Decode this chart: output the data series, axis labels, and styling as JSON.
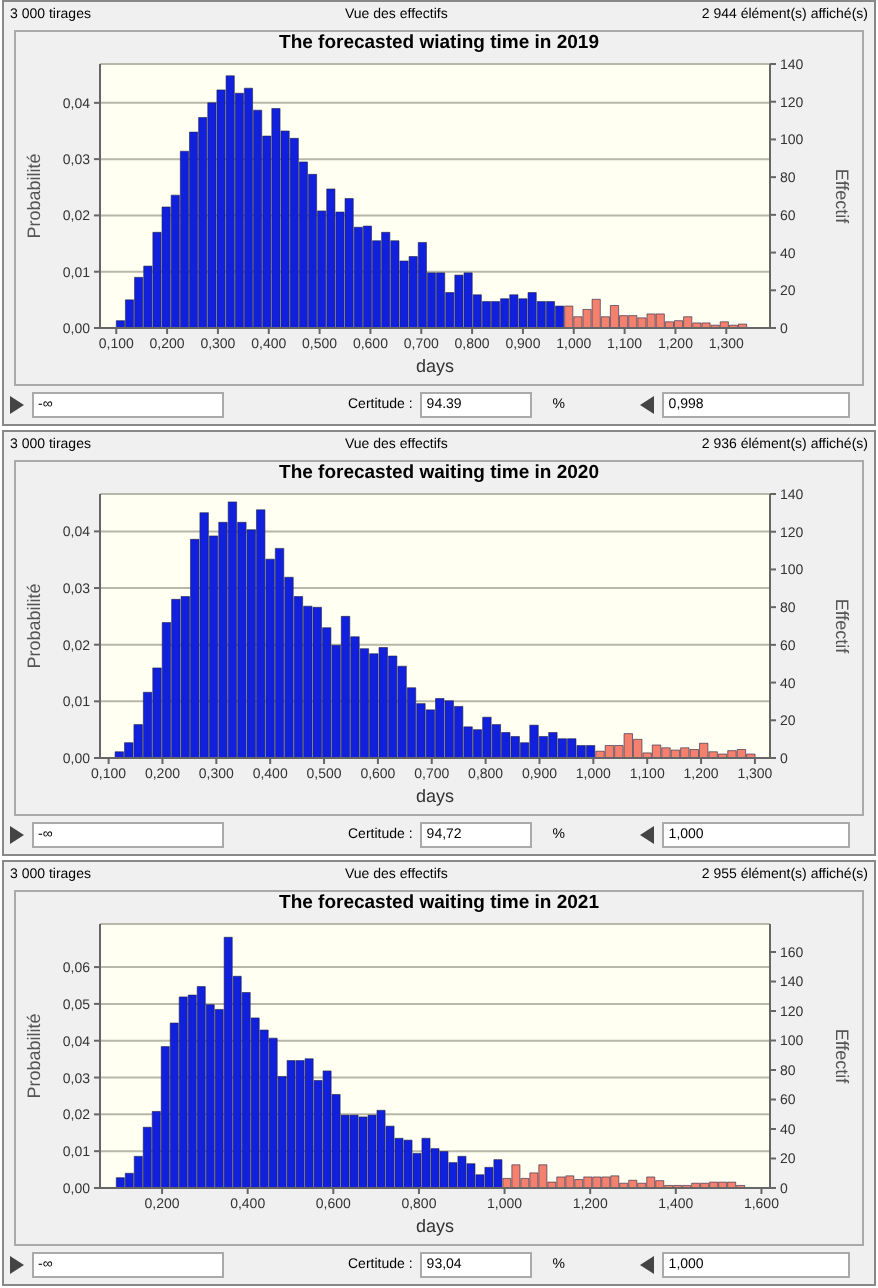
{
  "chart_data": [
    {
      "type": "histogram",
      "title": "The forecasted wiating time in 2019",
      "xlabel": "days",
      "ylabel": "Probabilité",
      "y2label": "Effectif",
      "bins": [
        0.1,
        0.118,
        0.136,
        0.154,
        0.172,
        0.19,
        0.208,
        0.226,
        0.244,
        0.262,
        0.28,
        0.298,
        0.316,
        0.334,
        0.352,
        0.37,
        0.388,
        0.406,
        0.424,
        0.442,
        0.46,
        0.478,
        0.496,
        0.514,
        0.532,
        0.55,
        0.568,
        0.586,
        0.604,
        0.622,
        0.64,
        0.658,
        0.676,
        0.694,
        0.712,
        0.73,
        0.748,
        0.766,
        0.784,
        0.802,
        0.82,
        0.838,
        0.856,
        0.874,
        0.892,
        0.91,
        0.928,
        0.946,
        0.964,
        0.982,
        1,
        1.018,
        1.036,
        1.054,
        1.072,
        1.09,
        1.108,
        1.126,
        1.144,
        1.162,
        1.18,
        1.198,
        1.216,
        1.234,
        1.252,
        1.27,
        1.288,
        1.306,
        1.324,
        1.342
      ],
      "values": [
        0.0013,
        0.005,
        0.009,
        0.011,
        0.017,
        0.0215,
        0.0236,
        0.0314,
        0.0348,
        0.0374,
        0.04,
        0.0423,
        0.0448,
        0.0417,
        0.0426,
        0.0387,
        0.0341,
        0.039,
        0.035,
        0.0337,
        0.0295,
        0.0273,
        0.0208,
        0.0247,
        0.0206,
        0.023,
        0.0179,
        0.0181,
        0.0155,
        0.017,
        0.0155,
        0.0119,
        0.0127,
        0.0152,
        0.0098,
        0.0098,
        0.0063,
        0.0094,
        0.0098,
        0.0059,
        0.0047,
        0.0047,
        0.0052,
        0.0059,
        0.0052,
        0.0063,
        0.0047,
        0.0047,
        0.0039,
        0.0039,
        0.002,
        0.0033,
        0.0051,
        0.002,
        0.004,
        0.0022,
        0.0022,
        0.0018,
        0.0025,
        0.0025,
        0.0011,
        0.0013,
        0.002,
        0.0009,
        0.0009,
        0.0005,
        0.0011,
        0.0005,
        0.0007
      ],
      "colors": [
        "#1020dc",
        "#1020dc",
        "#1020dc",
        "#1020dc",
        "#1020dc",
        "#1020dc",
        "#1020dc",
        "#1020dc",
        "#1020dc",
        "#1020dc",
        "#1020dc",
        "#1020dc",
        "#1020dc",
        "#1020dc",
        "#1020dc",
        "#1020dc",
        "#1020dc",
        "#1020dc",
        "#1020dc",
        "#1020dc",
        "#1020dc",
        "#1020dc",
        "#1020dc",
        "#1020dc",
        "#1020dc",
        "#1020dc",
        "#1020dc",
        "#1020dc",
        "#1020dc",
        "#1020dc",
        "#1020dc",
        "#1020dc",
        "#1020dc",
        "#1020dc",
        "#1020dc",
        "#1020dc",
        "#1020dc",
        "#1020dc",
        "#1020dc",
        "#1020dc",
        "#1020dc",
        "#1020dc",
        "#1020dc",
        "#1020dc",
        "#1020dc",
        "#1020dc",
        "#1020dc",
        "#1020dc",
        "#1020dc",
        "#f4806e",
        "#f4806e",
        "#f4806e",
        "#f4806e",
        "#f4806e",
        "#f4806e",
        "#f4806e",
        "#f4806e",
        "#f4806e",
        "#f4806e",
        "#f4806e",
        "#f4806e",
        "#f4806e",
        "#f4806e",
        "#f4806e",
        "#f4806e",
        "#f4806e",
        "#f4806e",
        "#f4806e",
        "#f4806e"
      ],
      "xlim": [
        0.068,
        1.386
      ],
      "xticks": [
        {
          "value": 0.1,
          "label": "0,100"
        },
        {
          "value": 0.2,
          "label": "0,200"
        },
        {
          "value": 0.3,
          "label": "0,300"
        },
        {
          "value": 0.4,
          "label": "0,400"
        },
        {
          "value": 0.5,
          "label": "0,500"
        },
        {
          "value": 0.6,
          "label": "0,600"
        },
        {
          "value": 0.7,
          "label": "0,700"
        },
        {
          "value": 0.8,
          "label": "0,800"
        },
        {
          "value": 0.9,
          "label": "0,900"
        },
        {
          "value": 1,
          "label": "1,000"
        },
        {
          "value": 1.1,
          "label": "1,100"
        },
        {
          "value": 1.2,
          "label": "1,200"
        },
        {
          "value": 1.3,
          "label": "1,300"
        }
      ],
      "ylim": [
        0,
        0.0469
      ],
      "yticks": [
        {
          "value": 0,
          "label": "0,00"
        },
        {
          "value": 0.01,
          "label": "0,01"
        },
        {
          "value": 0.02,
          "label": "0,02"
        },
        {
          "value": 0.03,
          "label": "0,03"
        },
        {
          "value": 0.04,
          "label": "0,04"
        }
      ],
      "y2lim": [
        0,
        140
      ],
      "y2ticks": [
        0,
        20,
        40,
        60,
        80,
        100,
        120,
        140
      ],
      "grid": "y",
      "legend": false,
      "annotations": [
        "3 000 tirages",
        "Vue des effectifs",
        "2 944 élément(s) affiché(s)",
        "-∞",
        "Certitude :",
        "94.39",
        "%",
        "0,998"
      ]
    },
    {
      "type": "histogram",
      "title": "The forecasted waiting time in 2020",
      "xlabel": "days",
      "ylabel": "Probabilité",
      "y2label": "Effectif",
      "bins": [
        0.112,
        0.1295,
        0.147,
        0.1645,
        0.182,
        0.1995,
        0.217,
        0.2345,
        0.252,
        0.2695,
        0.287,
        0.3045,
        0.322,
        0.3395,
        0.357,
        0.3745,
        0.392,
        0.4095,
        0.427,
        0.4445,
        0.462,
        0.4795,
        0.497,
        0.5145,
        0.532,
        0.5495,
        0.567,
        0.5845,
        0.602,
        0.6195,
        0.637,
        0.6545,
        0.672,
        0.6895,
        0.707,
        0.7245,
        0.742,
        0.7595,
        0.777,
        0.7945,
        0.812,
        0.8295,
        0.847,
        0.8645,
        0.882,
        0.8995,
        0.917,
        0.9345,
        0.952,
        0.9695,
        0.987,
        1.0045,
        1.022,
        1.0395,
        1.057,
        1.0745,
        1.092,
        1.1095,
        1.127,
        1.1445,
        1.162,
        1.1795,
        1.197,
        1.2145,
        1.232,
        1.2495,
        1.267,
        1.2845,
        1.302
      ],
      "values": [
        0.0011,
        0.0027,
        0.0059,
        0.0116,
        0.0159,
        0.0239,
        0.028,
        0.0285,
        0.0386,
        0.0433,
        0.0392,
        0.0416,
        0.0452,
        0.0416,
        0.0403,
        0.0438,
        0.0351,
        0.037,
        0.0319,
        0.0285,
        0.0268,
        0.0266,
        0.023,
        0.0199,
        0.025,
        0.0214,
        0.0193,
        0.0184,
        0.0195,
        0.018,
        0.0162,
        0.0124,
        0.0096,
        0.0085,
        0.0105,
        0.0101,
        0.0091,
        0.0055,
        0.005,
        0.0072,
        0.0059,
        0.0045,
        0.0038,
        0.0027,
        0.0058,
        0.0038,
        0.0045,
        0.0034,
        0.0034,
        0.0022,
        0.0022,
        0.0012,
        0.0022,
        0.0022,
        0.0043,
        0.0033,
        0.0009,
        0.0023,
        0.0018,
        0.0014,
        0.0018,
        0.0015,
        0.0026,
        0.0011,
        0.0007,
        0.0013,
        0.0015,
        0.0007
      ],
      "colors": [
        "#1020dc",
        "#1020dc",
        "#1020dc",
        "#1020dc",
        "#1020dc",
        "#1020dc",
        "#1020dc",
        "#1020dc",
        "#1020dc",
        "#1020dc",
        "#1020dc",
        "#1020dc",
        "#1020dc",
        "#1020dc",
        "#1020dc",
        "#1020dc",
        "#1020dc",
        "#1020dc",
        "#1020dc",
        "#1020dc",
        "#1020dc",
        "#1020dc",
        "#1020dc",
        "#1020dc",
        "#1020dc",
        "#1020dc",
        "#1020dc",
        "#1020dc",
        "#1020dc",
        "#1020dc",
        "#1020dc",
        "#1020dc",
        "#1020dc",
        "#1020dc",
        "#1020dc",
        "#1020dc",
        "#1020dc",
        "#1020dc",
        "#1020dc",
        "#1020dc",
        "#1020dc",
        "#1020dc",
        "#1020dc",
        "#1020dc",
        "#1020dc",
        "#1020dc",
        "#1020dc",
        "#1020dc",
        "#1020dc",
        "#1020dc",
        "#1020dc",
        "#f4806e",
        "#f4806e",
        "#f4806e",
        "#f4806e",
        "#f4806e",
        "#f4806e",
        "#f4806e",
        "#f4806e",
        "#f4806e",
        "#f4806e",
        "#f4806e",
        "#f4806e",
        "#f4806e",
        "#f4806e",
        "#f4806e",
        "#f4806e",
        "#f4806e"
      ],
      "xlim": [
        0.084,
        1.328
      ],
      "xticks": [
        {
          "value": 0.1,
          "label": "0,100"
        },
        {
          "value": 0.2,
          "label": "0,200"
        },
        {
          "value": 0.3,
          "label": "0,300"
        },
        {
          "value": 0.4,
          "label": "0,400"
        },
        {
          "value": 0.5,
          "label": "0,500"
        },
        {
          "value": 0.6,
          "label": "0,600"
        },
        {
          "value": 0.7,
          "label": "0,700"
        },
        {
          "value": 0.8,
          "label": "0,800"
        },
        {
          "value": 0.9,
          "label": "0,900"
        },
        {
          "value": 1,
          "label": "1,000"
        },
        {
          "value": 1.1,
          "label": "1,100"
        },
        {
          "value": 1.2,
          "label": "1,200"
        },
        {
          "value": 1.3,
          "label": "1,300"
        }
      ],
      "ylim": [
        0,
        0.0466
      ],
      "yticks": [
        {
          "value": 0,
          "label": "0,00"
        },
        {
          "value": 0.01,
          "label": "0,01"
        },
        {
          "value": 0.02,
          "label": "0,02"
        },
        {
          "value": 0.03,
          "label": "0,03"
        },
        {
          "value": 0.04,
          "label": "0,04"
        }
      ],
      "y2lim": [
        0,
        140
      ],
      "y2ticks": [
        0,
        20,
        40,
        60,
        80,
        100,
        120,
        140
      ],
      "grid": "y",
      "legend": false,
      "annotations": [
        "3 000 tirages",
        "Vue des effectifs",
        "2 936 élément(s) affiché(s)",
        "-∞",
        "Certitude :",
        "94,72",
        "%",
        "1,000"
      ]
    },
    {
      "type": "histogram",
      "title": "The forecasted waiting time in 2021",
      "xlabel": "days",
      "ylabel": "Probabilité",
      "y2label": "Effectif",
      "bins": [
        0.093,
        0.114,
        0.135,
        0.156,
        0.177,
        0.198,
        0.219,
        0.24,
        0.261,
        0.282,
        0.303,
        0.324,
        0.345,
        0.366,
        0.387,
        0.408,
        0.429,
        0.45,
        0.471,
        0.492,
        0.513,
        0.534,
        0.555,
        0.576,
        0.597,
        0.618,
        0.639,
        0.66,
        0.681,
        0.702,
        0.723,
        0.744,
        0.765,
        0.786,
        0.807,
        0.828,
        0.849,
        0.87,
        0.891,
        0.912,
        0.933,
        0.954,
        0.975,
        0.996,
        1.017,
        1.038,
        1.059,
        1.08,
        1.101,
        1.122,
        1.143,
        1.164,
        1.185,
        1.206,
        1.227,
        1.248,
        1.269,
        1.29,
        1.311,
        1.332,
        1.353,
        1.374,
        1.395,
        1.416,
        1.437,
        1.458,
        1.479,
        1.5,
        1.521,
        1.542,
        1.563
      ],
      "values": [
        0.0028,
        0.004,
        0.0086,
        0.0165,
        0.0208,
        0.0384,
        0.0448,
        0.0519,
        0.0524,
        0.0547,
        0.0498,
        0.0485,
        0.0681,
        0.0575,
        0.0531,
        0.0462,
        0.0429,
        0.0407,
        0.0303,
        0.0346,
        0.0346,
        0.0351,
        0.0292,
        0.0318,
        0.0254,
        0.0198,
        0.0198,
        0.0193,
        0.0198,
        0.0211,
        0.0168,
        0.0135,
        0.013,
        0.0094,
        0.0135,
        0.0107,
        0.0099,
        0.0069,
        0.0086,
        0.0066,
        0.0036,
        0.0056,
        0.0077,
        0.0026,
        0.0063,
        0.0026,
        0.0041,
        0.0063,
        0.0016,
        0.003,
        0.0033,
        0.0023,
        0.003,
        0.003,
        0.003,
        0.0033,
        0.0013,
        0.0021,
        0.0013,
        0.003,
        0.002,
        0.0007,
        0.0007,
        0.0007,
        0.0013,
        0.0013,
        0.0016,
        0.0016,
        0.0016,
        0.0007
      ],
      "colors": [
        "#1020dc",
        "#1020dc",
        "#1020dc",
        "#1020dc",
        "#1020dc",
        "#1020dc",
        "#1020dc",
        "#1020dc",
        "#1020dc",
        "#1020dc",
        "#1020dc",
        "#1020dc",
        "#1020dc",
        "#1020dc",
        "#1020dc",
        "#1020dc",
        "#1020dc",
        "#1020dc",
        "#1020dc",
        "#1020dc",
        "#1020dc",
        "#1020dc",
        "#1020dc",
        "#1020dc",
        "#1020dc",
        "#1020dc",
        "#1020dc",
        "#1020dc",
        "#1020dc",
        "#1020dc",
        "#1020dc",
        "#1020dc",
        "#1020dc",
        "#1020dc",
        "#1020dc",
        "#1020dc",
        "#1020dc",
        "#1020dc",
        "#1020dc",
        "#1020dc",
        "#1020dc",
        "#1020dc",
        "#1020dc",
        "#f4806e",
        "#f4806e",
        "#f4806e",
        "#f4806e",
        "#f4806e",
        "#f4806e",
        "#f4806e",
        "#f4806e",
        "#f4806e",
        "#f4806e",
        "#f4806e",
        "#f4806e",
        "#f4806e",
        "#f4806e",
        "#f4806e",
        "#f4806e",
        "#f4806e",
        "#f4806e",
        "#f4806e",
        "#f4806e",
        "#f4806e",
        "#f4806e",
        "#f4806e",
        "#f4806e",
        "#f4806e",
        "#f4806e",
        "#f4806e"
      ],
      "xlim": [
        0.055,
        1.62
      ],
      "xticks": [
        {
          "value": 0.2,
          "label": "0,200"
        },
        {
          "value": 0.4,
          "label": "0,400"
        },
        {
          "value": 0.6,
          "label": "0,600"
        },
        {
          "value": 0.8,
          "label": "0,800"
        },
        {
          "value": 1,
          "label": "1,000"
        },
        {
          "value": 1.2,
          "label": "1,200"
        },
        {
          "value": 1.4,
          "label": "1,400"
        },
        {
          "value": 1.6,
          "label": "1,600"
        }
      ],
      "ylim": [
        0,
        0.0717
      ],
      "yticks": [
        {
          "value": 0,
          "label": "0,00"
        },
        {
          "value": 0.01,
          "label": "0,01"
        },
        {
          "value": 0.02,
          "label": "0,02"
        },
        {
          "value": 0.03,
          "label": "0,03"
        },
        {
          "value": 0.04,
          "label": "0,04"
        },
        {
          "value": 0.05,
          "label": "0,05"
        },
        {
          "value": 0.06,
          "label": "0,06"
        }
      ],
      "y2lim": [
        0,
        179
      ],
      "y2ticks": [
        0,
        20,
        40,
        60,
        80,
        100,
        120,
        140,
        160
      ],
      "grid": "y",
      "legend": false,
      "annotations": [
        "3 000 tirages",
        "Vue des effectifs",
        "2 955 élément(s) affiché(s)",
        "-∞",
        "Certitude :",
        "93,04",
        "%",
        "1,000"
      ]
    }
  ]
}
